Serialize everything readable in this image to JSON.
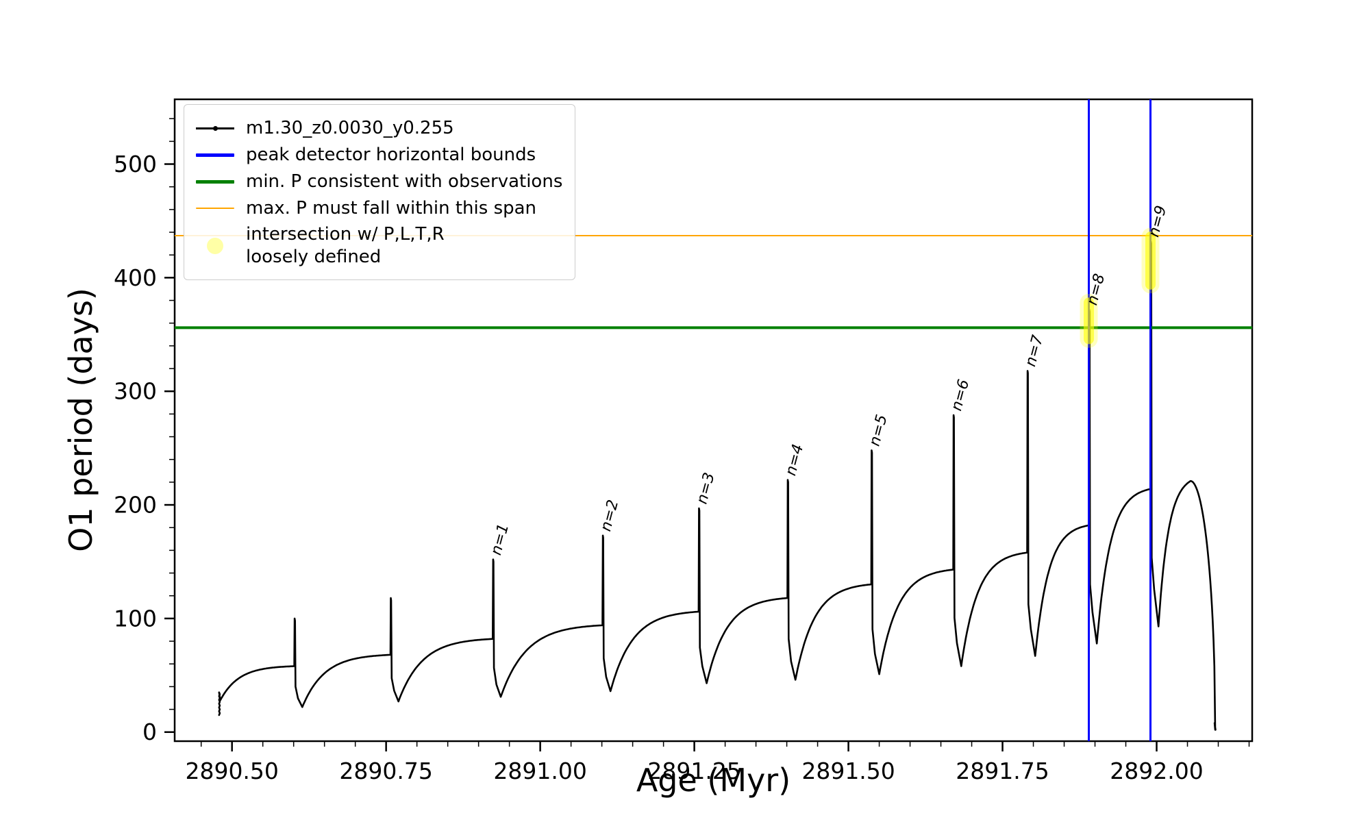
{
  "axes": {
    "xlabel": "Age (Myr)",
    "ylabel": "O1 period (days)",
    "xlim": [
      2890.407,
      2892.155
    ],
    "ylim": [
      -8,
      557
    ],
    "xticks": [
      2890.5,
      2890.75,
      2891.0,
      2891.25,
      2891.5,
      2891.75,
      2892.0
    ],
    "xtick_labels": [
      "2890.50",
      "2890.75",
      "2891.00",
      "2891.25",
      "2891.50",
      "2891.75",
      "2892.00"
    ],
    "yticks": [
      0,
      100,
      200,
      300,
      400,
      500
    ],
    "ytick_labels": [
      "0",
      "100",
      "200",
      "300",
      "400",
      "500"
    ],
    "x_minor_step": 0.05,
    "y_minor_step": 20,
    "grid": false
  },
  "legend": {
    "position": "upper-left",
    "entries": [
      {
        "label": "m1.30_z0.0030_y0.255",
        "marker": "line-dot",
        "color": "#000000",
        "lw": 2.5
      },
      {
        "label": "peak detector horizontal bounds",
        "marker": "line",
        "color": "#0000ff",
        "lw": 5
      },
      {
        "label": "min. P consistent with observations",
        "marker": "line",
        "color": "#008000",
        "lw": 5
      },
      {
        "label": "max. P must fall within this span",
        "marker": "line",
        "color": "#ffa500",
        "lw": 2.5
      },
      {
        "label": "intersection w/ P,L,T,R\nloosely defined",
        "marker": "dot",
        "color": "#ffff00",
        "opacity": 0.35
      }
    ]
  },
  "chart_data": {
    "type": "line",
    "title": "",
    "xlabel": "Age (Myr)",
    "ylabel": "O1 period (days)",
    "series_name": "m1.30_z0.0030_y0.255",
    "series_color": "#000000",
    "description": "Sawtooth relaxation cycles of O1 period vs age; each cycle rises from a dip to a shoulder then spikes to a sharp peak (peaks n=1..n=9 annotated) before collapsing to the next dip. Final cycle is a rounded dome that plunges to ~0.",
    "start_blob": {
      "x": 2890.479,
      "y_min": 15,
      "y_max": 35,
      "y_start": 28
    },
    "cycles": [
      {
        "label": null,
        "spike_x": 2890.601,
        "peak": 100,
        "shoulder": 58,
        "dip_after": 22
      },
      {
        "label": null,
        "spike_x": 2890.757,
        "peak": 118,
        "shoulder": 68,
        "dip_after": 27
      },
      {
        "label": "n=1",
        "spike_x": 2890.923,
        "peak": 152,
        "shoulder": 82,
        "dip_after": 31
      },
      {
        "label": "n=2",
        "spike_x": 2891.101,
        "peak": 173,
        "shoulder": 94,
        "dip_after": 36
      },
      {
        "label": "n=3",
        "spike_x": 2891.257,
        "peak": 197,
        "shoulder": 106,
        "dip_after": 43
      },
      {
        "label": "n=4",
        "spike_x": 2891.401,
        "peak": 222,
        "shoulder": 118,
        "dip_after": 46
      },
      {
        "label": "n=5",
        "spike_x": 2891.537,
        "peak": 248,
        "shoulder": 130,
        "dip_after": 51
      },
      {
        "label": "n=6",
        "spike_x": 2891.67,
        "peak": 279,
        "shoulder": 143,
        "dip_after": 58
      },
      {
        "label": "n=7",
        "spike_x": 2891.79,
        "peak": 318,
        "shoulder": 158,
        "dip_after": 67
      },
      {
        "label": "n=8",
        "spike_x": 2891.89,
        "peak": 372,
        "shoulder": 182,
        "dip_after": 78
      },
      {
        "label": "n=9",
        "spike_x": 2891.99,
        "peak": 432,
        "shoulder": 214,
        "dip_after": 93
      }
    ],
    "end_hump": {
      "rise_to_x": 2892.055,
      "peak": 221,
      "fall_to_x": 2892.095,
      "tail_y": 2
    },
    "hlines": [
      {
        "y": 356,
        "color": "#008000",
        "lw": 4,
        "label": "min. P consistent with observations"
      },
      {
        "y": 437,
        "color": "#ffa500",
        "lw": 2,
        "label": "max. P must fall within this span"
      }
    ],
    "vlines": [
      {
        "x": 2891.89,
        "color": "#0000ff",
        "lw": 3,
        "label": "peak detector horizontal bounds"
      },
      {
        "x": 2891.99,
        "color": "#0000ff",
        "lw": 3,
        "label": "peak detector horizontal bounds"
      }
    ],
    "intersections": [
      {
        "x": 2891.89,
        "y_from": 346,
        "y_to": 378,
        "color": "#ffff00"
      },
      {
        "x": 2891.99,
        "y_from": 394,
        "y_to": 436,
        "color": "#ffff00"
      }
    ],
    "peak_labels": [
      "n=1",
      "n=2",
      "n=3",
      "n=4",
      "n=5",
      "n=6",
      "n=7",
      "n=8",
      "n=9"
    ]
  }
}
